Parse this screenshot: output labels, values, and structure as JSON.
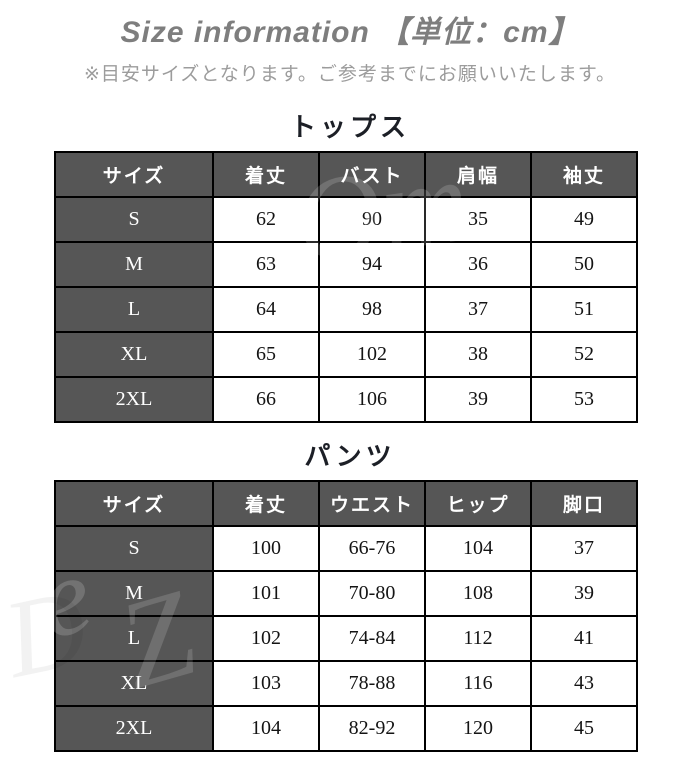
{
  "page": {
    "title": "Size information 【単位：cm】",
    "subtitle": "※目安サイズとなります。ご参考までにお願いいたします。",
    "unit": "cm"
  },
  "colors": {
    "header_cell_bg": "#565656",
    "header_cell_text": "#ffffff",
    "table_border": "#000000",
    "title_text": "#7e7e7e",
    "subtitle_text": "#9c9c9c",
    "body_text": "#141414",
    "page_bg": "#ffffff"
  },
  "tables": [
    {
      "heading": "トップス",
      "columns": [
        "サイズ",
        "着丈",
        "バスト",
        "肩幅",
        "袖丈"
      ],
      "rows": [
        [
          "S",
          "62",
          "90",
          "35",
          "49"
        ],
        [
          "M",
          "63",
          "94",
          "36",
          "50"
        ],
        [
          "L",
          "64",
          "98",
          "37",
          "51"
        ],
        [
          "XL",
          "65",
          "102",
          "38",
          "52"
        ],
        [
          "2XL",
          "66",
          "106",
          "39",
          "53"
        ]
      ]
    },
    {
      "heading": "パンツ",
      "columns": [
        "サイズ",
        "着丈",
        "ウエスト",
        "ヒップ",
        "脚口"
      ],
      "rows": [
        [
          "S",
          "100",
          "66-76",
          "104",
          "37"
        ],
        [
          "M",
          "101",
          "70-80",
          "108",
          "39"
        ],
        [
          "L",
          "102",
          "74-84",
          "112",
          "41"
        ],
        [
          "XL",
          "103",
          "78-88",
          "116",
          "43"
        ],
        [
          "2XL",
          "104",
          "82-92",
          "120",
          "45"
        ]
      ]
    }
  ],
  "watermark_glyphs": [
    "Om",
    "e",
    "Z",
    "D"
  ]
}
